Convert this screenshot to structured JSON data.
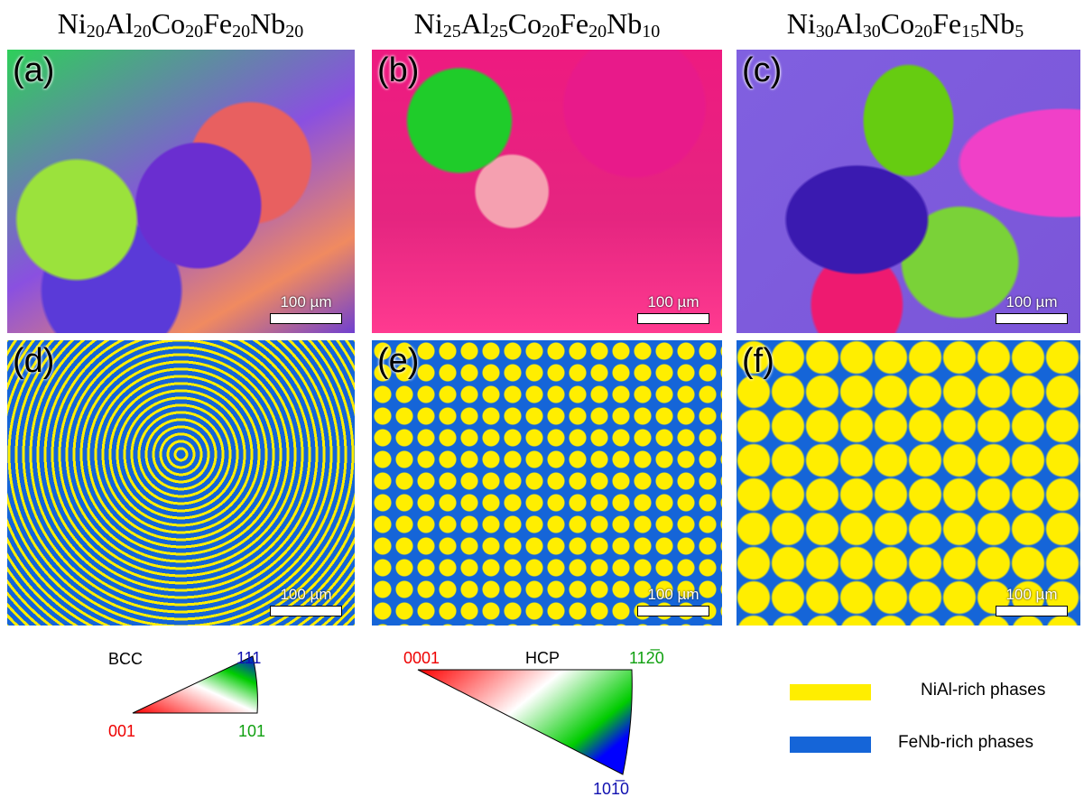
{
  "columns": [
    {
      "formula": [
        {
          "el": "Ni",
          "sub": "20"
        },
        {
          "el": "Al",
          "sub": "20"
        },
        {
          "el": "Co",
          "sub": "20"
        },
        {
          "el": "Fe",
          "sub": "20"
        },
        {
          "el": "Nb",
          "sub": "20"
        }
      ]
    },
    {
      "formula": [
        {
          "el": "Ni",
          "sub": "25"
        },
        {
          "el": "Al",
          "sub": "25"
        },
        {
          "el": "Co",
          "sub": "20"
        },
        {
          "el": "Fe",
          "sub": "20"
        },
        {
          "el": "Nb",
          "sub": "10"
        }
      ]
    },
    {
      "formula": [
        {
          "el": "Ni",
          "sub": "30"
        },
        {
          "el": "Al",
          "sub": "30"
        },
        {
          "el": "Co",
          "sub": "20"
        },
        {
          "el": "Fe",
          "sub": "15"
        },
        {
          "el": "Nb",
          "sub": "5"
        }
      ]
    }
  ],
  "panels": [
    {
      "label": "(a)",
      "scale": "100 µm"
    },
    {
      "label": "(b)",
      "scale": "100 µm"
    },
    {
      "label": "(c)",
      "scale": "100 µm"
    },
    {
      "label": "(d)",
      "scale": "100 µm"
    },
    {
      "label": "(e)",
      "scale": "100 µm"
    },
    {
      "label": "(f)",
      "scale": "100 µm"
    }
  ],
  "bcc_key": {
    "title": "BCC",
    "top": "111",
    "left": "001",
    "right": "101"
  },
  "hcp_key": {
    "title": "HCP",
    "left": "0001",
    "right": "112̅0",
    "bottom": "101̅0"
  },
  "legend": [
    {
      "name": "NiAl-rich phases",
      "color": "#ffee00"
    },
    {
      "name": "FeNb-rich phases",
      "color": "#1565d8"
    }
  ]
}
